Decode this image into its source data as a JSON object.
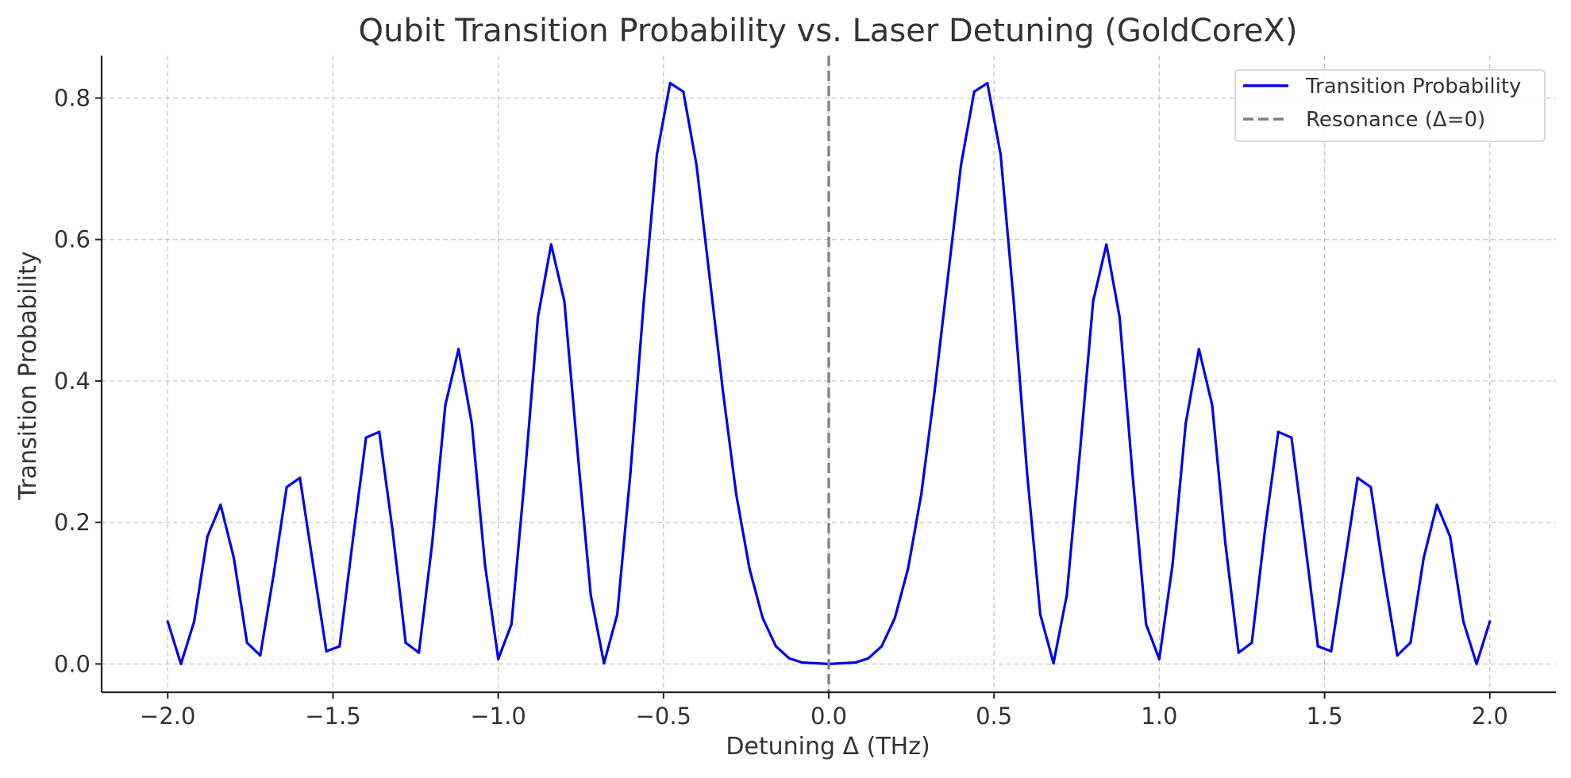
{
  "chart_data": {
    "type": "line",
    "title": "Qubit Transition Probability vs. Laser Detuning (GoldCoreX)",
    "xlabel": "Detuning Δ (THz)",
    "ylabel": "Transition Probability",
    "xlim": [
      -2.2,
      2.2
    ],
    "ylim": [
      -0.04,
      0.86
    ],
    "xticks": [
      -2.0,
      -1.5,
      -1.0,
      -0.5,
      0.0,
      0.5,
      1.0,
      1.5,
      2.0
    ],
    "xtick_labels": [
      "−2.0",
      "−1.5",
      "−1.0",
      "−0.5",
      "0.0",
      "0.5",
      "1.0",
      "1.5",
      "2.0"
    ],
    "yticks": [
      0.0,
      0.2,
      0.4,
      0.6,
      0.8
    ],
    "ytick_labels": [
      "0.0",
      "0.2",
      "0.4",
      "0.6",
      "0.8"
    ],
    "grid": true,
    "legend_position": "top-right",
    "series": [
      {
        "name": "Transition Probability",
        "color": "#0000ee",
        "style": "solid",
        "x": [
          -2.0,
          -1.96,
          -1.92,
          -1.88,
          -1.84,
          -1.8,
          -1.76,
          -1.72,
          -1.68,
          -1.64,
          -1.6,
          -1.56,
          -1.52,
          -1.48,
          -1.44,
          -1.4,
          -1.36,
          -1.32,
          -1.28,
          -1.24,
          -1.2,
          -1.16,
          -1.12,
          -1.08,
          -1.04,
          -1.0,
          -0.96,
          -0.92,
          -0.88,
          -0.84,
          -0.8,
          -0.76,
          -0.72,
          -0.68,
          -0.64,
          -0.6,
          -0.56,
          -0.52,
          -0.48,
          -0.44,
          -0.4,
          -0.36,
          -0.32,
          -0.28,
          -0.24,
          -0.2,
          -0.16,
          -0.12,
          -0.08,
          -0.04,
          0.0,
          0.04,
          0.08,
          0.12,
          0.16,
          0.2,
          0.24,
          0.28,
          0.32,
          0.36,
          0.4,
          0.44,
          0.48,
          0.52,
          0.56,
          0.6,
          0.64,
          0.68,
          0.72,
          0.76,
          0.8,
          0.84,
          0.88,
          0.92,
          0.96,
          1.0,
          1.04,
          1.08,
          1.12,
          1.16,
          1.2,
          1.24,
          1.28,
          1.32,
          1.36,
          1.4,
          1.44,
          1.48,
          1.52,
          1.56,
          1.6,
          1.64,
          1.68,
          1.72,
          1.76,
          1.8,
          1.84,
          1.88,
          1.92,
          1.96,
          2.0
        ],
        "y": [
          0.06,
          0.0,
          0.06,
          0.18,
          0.225,
          0.15,
          0.03,
          0.012,
          0.125,
          0.25,
          0.263,
          0.14,
          0.018,
          0.025,
          0.175,
          0.32,
          0.328,
          0.19,
          0.03,
          0.016,
          0.17,
          0.366,
          0.445,
          0.34,
          0.14,
          0.007,
          0.056,
          0.263,
          0.49,
          0.593,
          0.513,
          0.3,
          0.097,
          0.001,
          0.07,
          0.27,
          0.51,
          0.72,
          0.821,
          0.809,
          0.705,
          0.545,
          0.385,
          0.24,
          0.135,
          0.065,
          0.025,
          0.008,
          0.002,
          0.001,
          0.0,
          0.001,
          0.002,
          0.008,
          0.025,
          0.065,
          0.135,
          0.24,
          0.385,
          0.545,
          0.705,
          0.809,
          0.821,
          0.72,
          0.51,
          0.27,
          0.07,
          0.001,
          0.097,
          0.3,
          0.513,
          0.593,
          0.49,
          0.263,
          0.056,
          0.007,
          0.14,
          0.34,
          0.445,
          0.366,
          0.17,
          0.016,
          0.03,
          0.19,
          0.328,
          0.32,
          0.175,
          0.025,
          0.018,
          0.14,
          0.263,
          0.25,
          0.125,
          0.012,
          0.03,
          0.15,
          0.225,
          0.18,
          0.06,
          0.0,
          0.06
        ]
      },
      {
        "name": "Resonance (Δ=0)",
        "color": "#7f7f7f",
        "style": "dashed",
        "type": "vline",
        "x_value": 0.0
      }
    ]
  }
}
